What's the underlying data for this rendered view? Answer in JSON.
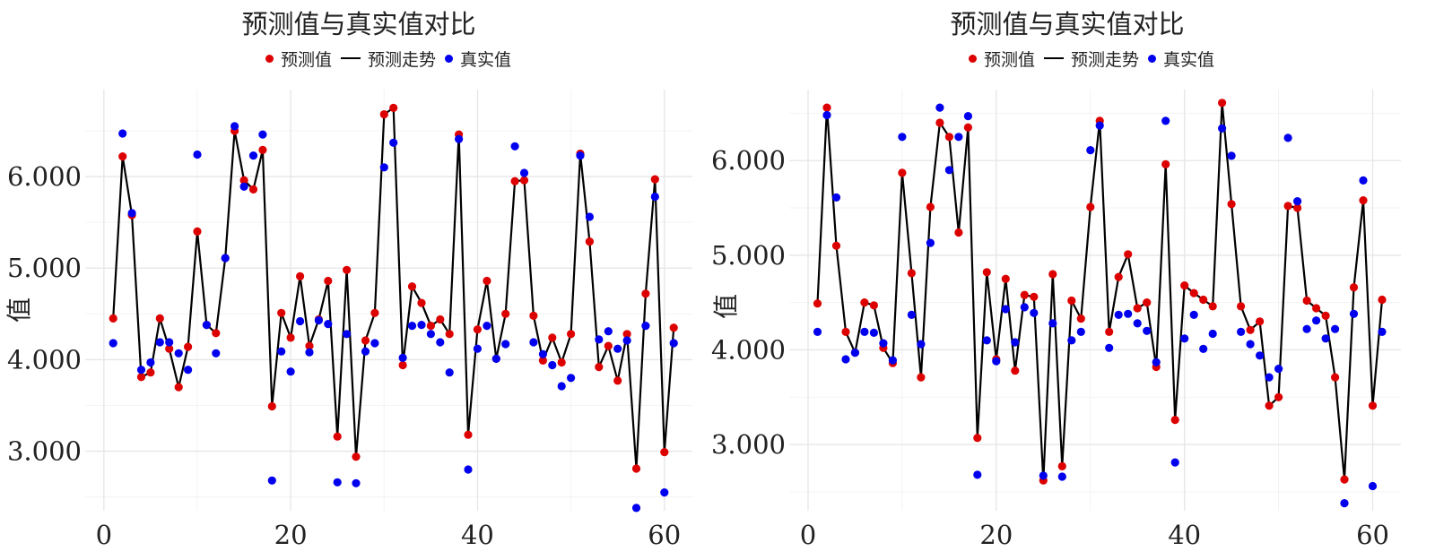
{
  "chart_data": [
    {
      "type": "line",
      "title": "预测值与真实值对比",
      "xlabel": "",
      "ylabel": "值",
      "xlim": [
        -2,
        63
      ],
      "ylim": [
        2.35,
        6.95
      ],
      "x_ticks": [
        0,
        20,
        40,
        60
      ],
      "y_ticks": [
        3.0,
        4.0,
        5.0,
        6.0
      ],
      "y_tick_labels": [
        "3.000",
        "4.000",
        "5.000",
        "6.000"
      ],
      "grid": true,
      "legend_position": "top",
      "x": [
        1,
        2,
        3,
        4,
        5,
        6,
        7,
        8,
        9,
        10,
        11,
        12,
        13,
        14,
        15,
        16,
        17,
        18,
        19,
        20,
        21,
        22,
        23,
        24,
        25,
        26,
        27,
        28,
        29,
        30,
        31,
        32,
        33,
        34,
        35,
        36,
        37,
        38,
        39,
        40,
        41,
        42,
        43,
        44,
        45,
        46,
        47,
        48,
        49,
        50,
        51,
        52,
        53,
        54,
        55,
        56,
        57,
        58,
        59,
        60,
        61
      ],
      "series": [
        {
          "name": "预测值",
          "kind": "points",
          "color": "#dd0000",
          "values": [
            4.45,
            6.22,
            5.58,
            3.81,
            3.86,
            4.45,
            4.12,
            3.7,
            4.14,
            5.4,
            4.38,
            4.29,
            5.11,
            6.5,
            5.96,
            5.86,
            6.29,
            3.49,
            4.51,
            4.24,
            4.91,
            4.15,
            4.44,
            4.86,
            3.16,
            4.98,
            2.94,
            4.21,
            4.51,
            6.68,
            6.75,
            3.94,
            4.8,
            4.62,
            4.37,
            4.44,
            4.28,
            6.46,
            3.18,
            4.33,
            4.86,
            4.01,
            4.5,
            5.95,
            5.96,
            4.48,
            3.99,
            4.24,
            3.97,
            4.28,
            6.25,
            5.29,
            3.92,
            4.15,
            3.77,
            4.28,
            2.81,
            4.72,
            5.97,
            2.99,
            4.35
          ]
        },
        {
          "name": "预测走势",
          "kind": "line",
          "color": "#000000",
          "values": [
            4.45,
            6.22,
            5.58,
            3.81,
            3.86,
            4.45,
            4.12,
            3.7,
            4.14,
            5.4,
            4.38,
            4.29,
            5.11,
            6.5,
            5.96,
            5.86,
            6.29,
            3.49,
            4.51,
            4.24,
            4.91,
            4.15,
            4.44,
            4.86,
            3.16,
            4.98,
            2.94,
            4.21,
            4.51,
            6.68,
            6.75,
            3.94,
            4.8,
            4.62,
            4.37,
            4.44,
            4.28,
            6.46,
            3.18,
            4.33,
            4.86,
            4.01,
            4.5,
            5.95,
            5.96,
            4.48,
            3.99,
            4.24,
            3.97,
            4.28,
            6.25,
            5.29,
            3.92,
            4.15,
            3.77,
            4.28,
            2.81,
            4.72,
            5.97,
            2.99,
            4.35
          ]
        },
        {
          "name": "真实值",
          "kind": "points",
          "color": "#0000ee",
          "values": [
            4.18,
            6.47,
            5.6,
            3.89,
            3.97,
            4.19,
            4.19,
            4.07,
            3.89,
            6.24,
            4.38,
            4.07,
            5.11,
            6.55,
            5.89,
            6.23,
            6.46,
            2.68,
            4.09,
            3.87,
            4.42,
            4.08,
            4.43,
            4.39,
            2.66,
            4.28,
            2.65,
            4.09,
            4.18,
            6.1,
            6.37,
            4.02,
            4.37,
            4.38,
            4.28,
            4.19,
            3.86,
            6.41,
            2.8,
            4.12,
            4.37,
            4.01,
            4.17,
            6.33,
            6.04,
            4.19,
            4.06,
            3.94,
            3.71,
            3.8,
            6.23,
            5.56,
            4.22,
            4.31,
            4.12,
            4.21,
            2.38,
            4.37,
            5.78,
            2.55,
            4.18
          ]
        }
      ]
    },
    {
      "type": "line",
      "title": "预测值与真实值对比",
      "xlabel": "",
      "ylabel": "值",
      "xlim": [
        -2,
        63
      ],
      "ylim": [
        2.3,
        6.75
      ],
      "x_ticks": [
        0,
        20,
        40,
        60
      ],
      "y_ticks": [
        3.0,
        4.0,
        5.0,
        6.0
      ],
      "y_tick_labels": [
        "3.000",
        "4.000",
        "5.000",
        "6.000"
      ],
      "grid": true,
      "legend_position": "top",
      "x": [
        1,
        2,
        3,
        4,
        5,
        6,
        7,
        8,
        9,
        10,
        11,
        12,
        13,
        14,
        15,
        16,
        17,
        18,
        19,
        20,
        21,
        22,
        23,
        24,
        25,
        26,
        27,
        28,
        29,
        30,
        31,
        32,
        33,
        34,
        35,
        36,
        37,
        38,
        39,
        40,
        41,
        42,
        43,
        44,
        45,
        46,
        47,
        48,
        49,
        50,
        51,
        52,
        53,
        54,
        55,
        56,
        57,
        58,
        59,
        60,
        61
      ],
      "series": [
        {
          "name": "预测值",
          "kind": "points",
          "color": "#dd0000",
          "values": [
            4.49,
            6.56,
            5.1,
            4.19,
            3.97,
            4.5,
            4.47,
            4.02,
            3.86,
            5.87,
            4.81,
            3.71,
            5.51,
            6.4,
            6.25,
            5.24,
            6.35,
            3.07,
            4.82,
            3.9,
            4.75,
            3.78,
            4.58,
            4.56,
            2.62,
            4.8,
            2.77,
            4.52,
            4.33,
            5.51,
            6.42,
            4.19,
            4.77,
            5.01,
            4.44,
            4.5,
            3.82,
            5.96,
            3.26,
            4.68,
            4.6,
            4.53,
            4.46,
            6.61,
            5.54,
            4.46,
            4.21,
            4.3,
            3.41,
            3.5,
            5.52,
            5.5,
            4.52,
            4.44,
            4.36,
            3.71,
            2.63,
            4.66,
            5.58,
            3.41,
            4.53
          ]
        },
        {
          "name": "预测走势",
          "kind": "line",
          "color": "#000000",
          "values": [
            4.49,
            6.56,
            5.1,
            4.19,
            3.97,
            4.5,
            4.47,
            4.02,
            3.86,
            5.87,
            4.81,
            3.71,
            5.51,
            6.4,
            6.25,
            5.24,
            6.35,
            3.07,
            4.82,
            3.9,
            4.75,
            3.78,
            4.58,
            4.56,
            2.62,
            4.8,
            2.77,
            4.52,
            4.33,
            5.51,
            6.42,
            4.19,
            4.77,
            5.01,
            4.44,
            4.5,
            3.82,
            5.96,
            3.26,
            4.68,
            4.6,
            4.53,
            4.46,
            6.61,
            5.54,
            4.46,
            4.21,
            4.3,
            3.41,
            3.5,
            5.52,
            5.5,
            4.52,
            4.44,
            4.36,
            3.71,
            2.63,
            4.66,
            5.58,
            3.41,
            4.53
          ]
        },
        {
          "name": "真实值",
          "kind": "points",
          "color": "#0000ee",
          "values": [
            4.19,
            6.48,
            5.61,
            3.9,
            3.97,
            4.19,
            4.18,
            4.07,
            3.89,
            6.25,
            4.37,
            4.06,
            5.13,
            6.56,
            5.9,
            6.25,
            6.47,
            2.68,
            4.1,
            3.88,
            4.43,
            4.08,
            4.45,
            4.39,
            2.67,
            4.28,
            2.66,
            4.1,
            4.19,
            6.11,
            6.37,
            4.02,
            4.37,
            4.38,
            4.28,
            4.2,
            3.87,
            6.42,
            2.81,
            4.12,
            4.37,
            4.01,
            4.17,
            6.34,
            6.05,
            4.19,
            4.06,
            3.94,
            3.71,
            3.8,
            6.24,
            5.57,
            4.22,
            4.31,
            4.12,
            4.22,
            2.38,
            4.38,
            5.79,
            2.56,
            4.19
          ]
        }
      ]
    }
  ]
}
